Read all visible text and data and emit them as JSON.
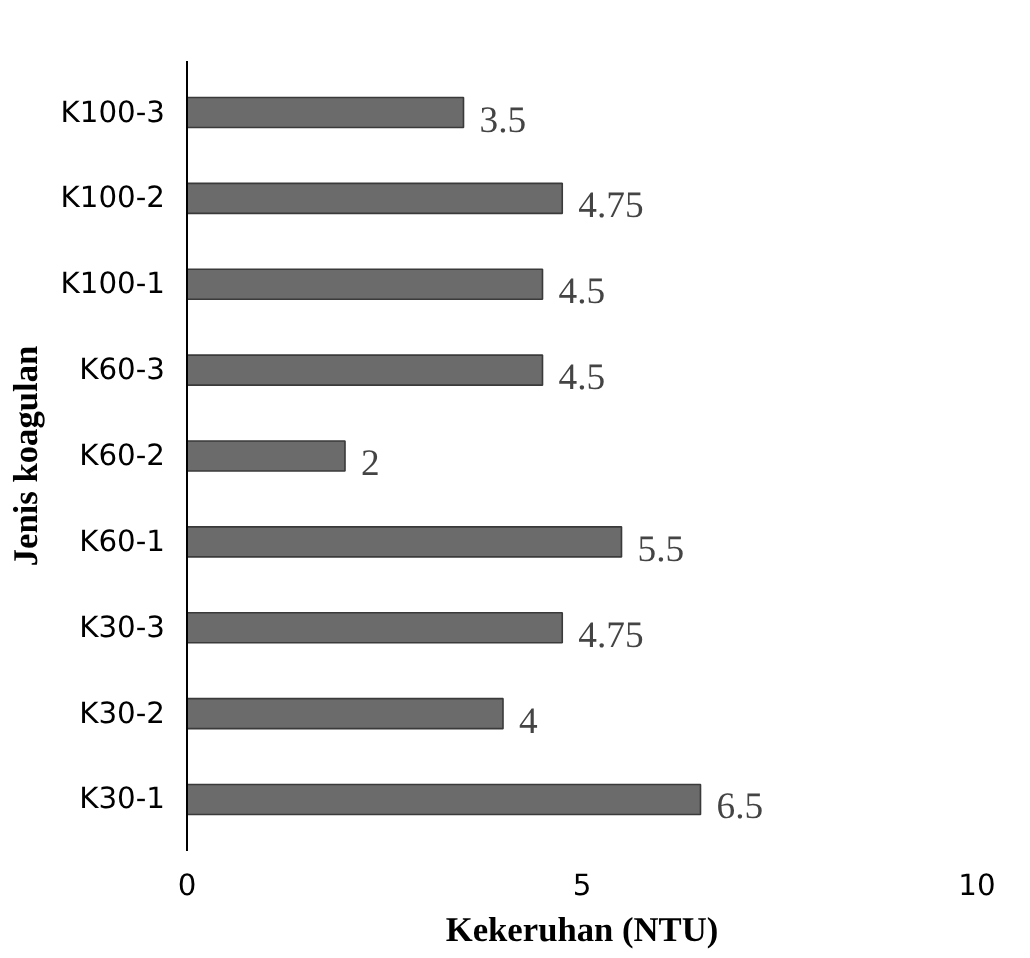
{
  "chart_data": {
    "type": "bar",
    "orientation": "horizontal",
    "categories": [
      "K100-3",
      "K100-2",
      "K100-1",
      "K60-3",
      "K60-2",
      "K60-1",
      "K30-3",
      "K30-2",
      "K30-1"
    ],
    "values": [
      3.5,
      4.75,
      4.5,
      4.5,
      2,
      5.5,
      4.75,
      4,
      6.5
    ],
    "color": "#6b6b6b",
    "xlim": [
      0,
      10
    ],
    "xticks": [
      0,
      5,
      10
    ],
    "xlabel": "Kekeruhan (NTU)",
    "ylabel": "Jenis koagulan",
    "data_labels": true,
    "grid": false
  }
}
